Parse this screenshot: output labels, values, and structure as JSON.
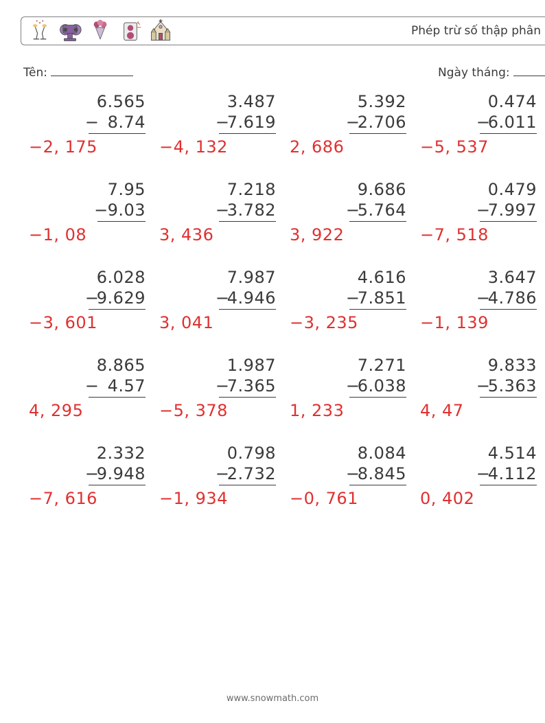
{
  "header": {
    "title": "Phép trừ số thập phân",
    "icon_accent": "#b24d74",
    "icon_accent2": "#86619e",
    "icon_accent3": "#d68b3a",
    "icon_outline": "#4a4a4a"
  },
  "labels": {
    "name": "Tên:",
    "date": "Ngày tháng:"
  },
  "style": {
    "text_color": "#3a3a3a",
    "answer_color": "#e03030",
    "rule_color": "#3a3a3a",
    "number_fontsize": 24,
    "label_fontsize": 17,
    "background": "#ffffff"
  },
  "footer": "www.snowmath.com",
  "problems": [
    {
      "a": "6.565",
      "b": "8.74",
      "ans": "−2, 175"
    },
    {
      "a": "3.487",
      "b": "7.619",
      "ans": "−4, 132"
    },
    {
      "a": "5.392",
      "b": "2.706",
      "ans": "2, 686"
    },
    {
      "a": "0.474",
      "b": "6.011",
      "ans": "−5, 537"
    },
    {
      "a": "7.95",
      "b": "9.03",
      "ans": "−1, 08"
    },
    {
      "a": "7.218",
      "b": "3.782",
      "ans": "3, 436"
    },
    {
      "a": "9.686",
      "b": "5.764",
      "ans": "3, 922"
    },
    {
      "a": "0.479",
      "b": "7.997",
      "ans": "−7, 518"
    },
    {
      "a": "6.028",
      "b": "9.629",
      "ans": "−3, 601"
    },
    {
      "a": "7.987",
      "b": "4.946",
      "ans": "3, 041"
    },
    {
      "a": "4.616",
      "b": "7.851",
      "ans": "−3, 235"
    },
    {
      "a": "3.647",
      "b": "4.786",
      "ans": "−1, 139"
    },
    {
      "a": "8.865",
      "b": "4.57",
      "ans": "4, 295"
    },
    {
      "a": "1.987",
      "b": "7.365",
      "ans": "−5, 378"
    },
    {
      "a": "7.271",
      "b": "6.038",
      "ans": "1, 233"
    },
    {
      "a": "9.833",
      "b": "5.363",
      "ans": "4, 47"
    },
    {
      "a": "2.332",
      "b": "9.948",
      "ans": "−7, 616"
    },
    {
      "a": "0.798",
      "b": "2.732",
      "ans": "−1, 934"
    },
    {
      "a": "8.084",
      "b": "8.845",
      "ans": "−0, 761"
    },
    {
      "a": "4.514",
      "b": "4.112",
      "ans": "0, 402"
    }
  ]
}
